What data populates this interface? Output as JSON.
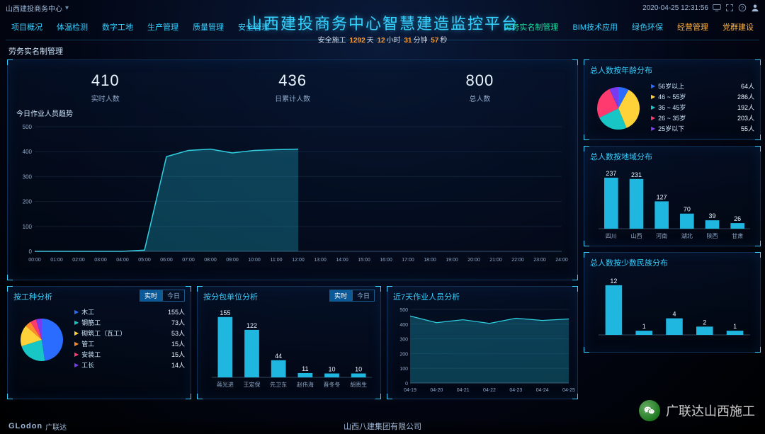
{
  "top": {
    "project": "山西建投商务中心",
    "datetime": "2020-04-25 12:31:56"
  },
  "title": "山西建投商务中心智慧建造监控平台",
  "safety": {
    "prefix": "安全施工",
    "days": "1292",
    "d": "天",
    "hours": "12",
    "h": "小时",
    "mins": "31",
    "m": "分钟",
    "secs": "57",
    "s": "秒"
  },
  "nav_left": [
    "项目概况",
    "体温检测",
    "数字工地",
    "生产管理",
    "质量管理",
    "安全管理"
  ],
  "nav_right": [
    "劳务实名制管理",
    "BIM技术应用",
    "绿色环保",
    "经营管理",
    "党群建设"
  ],
  "section": "劳务实名制管理",
  "kpi": [
    {
      "value": "410",
      "label": "实时人数"
    },
    {
      "value": "436",
      "label": "日累计人数"
    },
    {
      "value": "800",
      "label": "总人数"
    }
  ],
  "trend": {
    "title": "今日作业人员趋势",
    "ylim": [
      0,
      500
    ],
    "ytick": 100,
    "xlabels": [
      "00:00",
      "01:00",
      "02:00",
      "03:00",
      "04:00",
      "05:00",
      "06:00",
      "07:00",
      "08:00",
      "09:00",
      "10:00",
      "11:00",
      "12:00",
      "13:00",
      "14:00",
      "15:00",
      "16:00",
      "17:00",
      "18:00",
      "19:00",
      "20:00",
      "21:00",
      "22:00",
      "23:00",
      "24:00"
    ],
    "values": [
      0,
      0,
      0,
      0,
      0,
      5,
      380,
      405,
      410,
      395,
      405,
      408,
      410
    ],
    "line_color": "#2fd0e0",
    "fill_color": "rgba(30,160,190,.35)"
  },
  "age": {
    "title": "总人数按年龄分布",
    "items": [
      {
        "name": "56岁以上",
        "count": 64,
        "color": "#2a6cff"
      },
      {
        "name": "46 ~ 55岁",
        "count": 286,
        "color": "#ffd23a"
      },
      {
        "name": "36 ~ 45岁",
        "count": 192,
        "color": "#18c6c6"
      },
      {
        "name": "26 ~ 35岁",
        "count": 203,
        "color": "#ff3a6e"
      },
      {
        "name": "25岁以下",
        "count": 55,
        "color": "#7a3af0"
      }
    ],
    "unit": "人"
  },
  "region": {
    "title": "总人数按地域分布",
    "cats": [
      "四川",
      "山西",
      "河南",
      "湖北",
      "陕西",
      "甘肃"
    ],
    "vals": [
      237,
      231,
      127,
      70,
      39,
      26
    ],
    "color": "#1fb6e0",
    "ylim": 250
  },
  "worktype": {
    "title": "按工种分析",
    "tabs": [
      "实时",
      "今日"
    ],
    "items": [
      {
        "name": "木工",
        "count": 155,
        "color": "#2a6cff"
      },
      {
        "name": "钢筋工",
        "count": 73,
        "color": "#18c6c6"
      },
      {
        "name": "砌筑工（瓦工）",
        "count": 53,
        "color": "#ffd23a"
      },
      {
        "name": "管工",
        "count": 15,
        "color": "#ff8a2a"
      },
      {
        "name": "安装工",
        "count": 15,
        "color": "#ff3a6e"
      },
      {
        "name": "工长",
        "count": 14,
        "color": "#7a3af0"
      }
    ],
    "unit": "人"
  },
  "contractor": {
    "title": "按分包单位分析",
    "tabs": [
      "实时",
      "今日"
    ],
    "cats": [
      "蒋光进",
      "王定保",
      "先卫东",
      "赵伟海",
      "晋冬冬",
      "胡贵生"
    ],
    "vals": [
      155,
      122,
      44,
      11,
      10,
      10
    ],
    "color": "#1fb6e0",
    "ylim": 160
  },
  "last7": {
    "title": "近7天作业人员分析",
    "ylim": [
      0,
      500
    ],
    "ytick": 100,
    "cats": [
      "04-19",
      "04-20",
      "04-21",
      "04-22",
      "04-23",
      "04-24",
      "04-25"
    ],
    "vals": [
      455,
      410,
      430,
      405,
      440,
      425,
      435
    ],
    "line_color": "#2fd0e0",
    "fill_color": "rgba(30,160,190,.35)"
  },
  "ethnic": {
    "title": "总人数按少数民族分布",
    "cats": [
      "",
      "",
      "",
      "",
      ""
    ],
    "vals": [
      12,
      1,
      4,
      2,
      1
    ],
    "color": "#1fb6e0",
    "ylim": 13
  },
  "footer": {
    "brand": "GLodon",
    "brand_cn": "广联达",
    "center": "山西八建集团有限公司"
  },
  "watermark": "广联达山西施工"
}
